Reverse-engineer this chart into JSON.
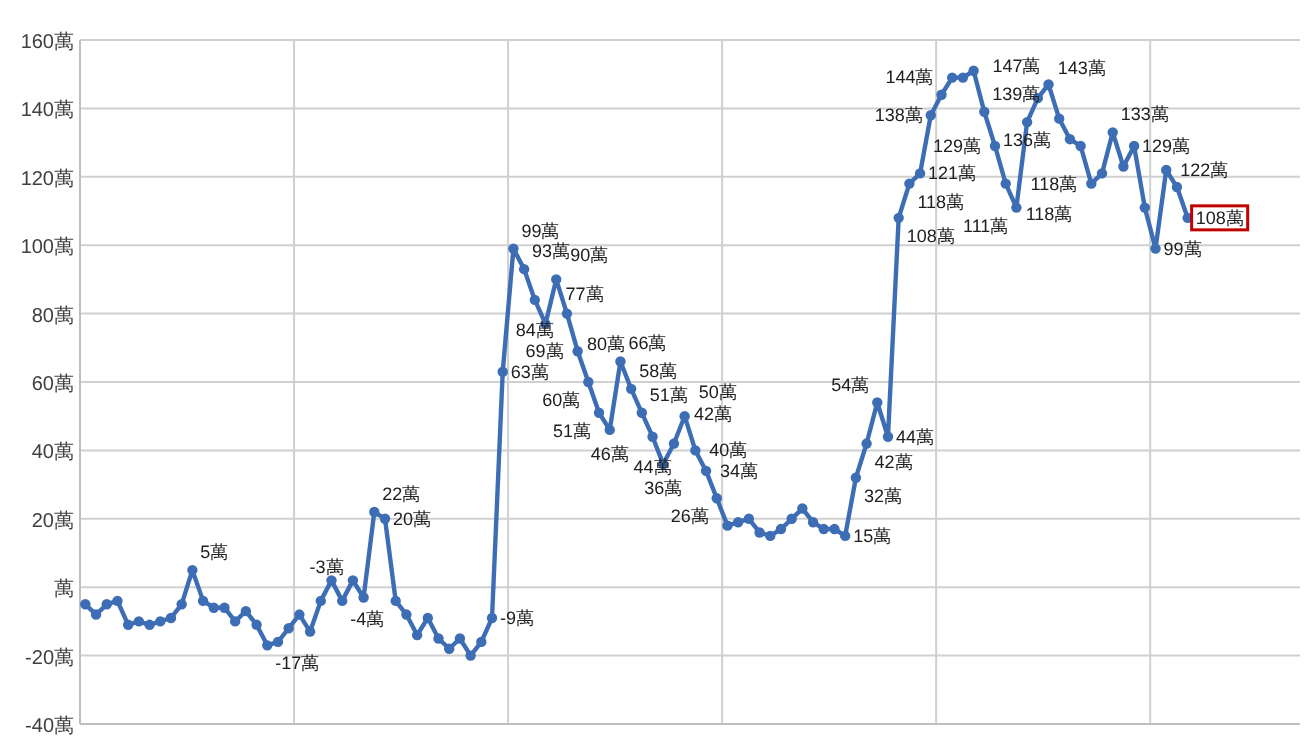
{
  "chart_data": {
    "type": "line",
    "categories": [
      null,
      null,
      null,
      null,
      null,
      null,
      null,
      null,
      null,
      null,
      null,
      null,
      null,
      null,
      null,
      null,
      null,
      null,
      null,
      null,
      null,
      null,
      null,
      null,
      null,
      null,
      null,
      null,
      null,
      null,
      null,
      null,
      null,
      null,
      null,
      null,
      null,
      null,
      null,
      null,
      null,
      null,
      null,
      null,
      null,
      null,
      null,
      null,
      null,
      null,
      null,
      null,
      null,
      null,
      null,
      null,
      null,
      null,
      null,
      null,
      null,
      null,
      null,
      null,
      null,
      null,
      null,
      null,
      null,
      null,
      null,
      null,
      null,
      null,
      null,
      null,
      null,
      null,
      null,
      null,
      null,
      null,
      null,
      null,
      null,
      null,
      null,
      null,
      null,
      null,
      null,
      null,
      null,
      null,
      null,
      null,
      null,
      null,
      null,
      null,
      null,
      null,
      null,
      null,
      null,
      null,
      null,
      null,
      null,
      null,
      null,
      null,
      null,
      null
    ],
    "series": [
      {
        "color": "#3d6eb5",
        "values": [
          -5,
          -8,
          -5,
          -4,
          -11,
          -10,
          -11,
          -10,
          -9,
          -5,
          5,
          -4,
          -6,
          -6,
          -10,
          -7,
          -11,
          -17,
          -16,
          -12,
          -8,
          -13,
          -4,
          2,
          -4,
          2,
          -3,
          22,
          20,
          -4,
          -8,
          -14,
          -9,
          -15,
          -18,
          -15,
          -20,
          -16,
          -9,
          63,
          99,
          93,
          84,
          77,
          90,
          80,
          69,
          60,
          51,
          46,
          66,
          58,
          51,
          44,
          36,
          42,
          50,
          40,
          34,
          26,
          18,
          19,
          20,
          16,
          15,
          17,
          20,
          23,
          19,
          17,
          17,
          15,
          32,
          42,
          54,
          44,
          108,
          118,
          121,
          138,
          144,
          149,
          149,
          151,
          139,
          129,
          118,
          111,
          136,
          143,
          147,
          137,
          131,
          129,
          118,
          121,
          133,
          123,
          129,
          111,
          99,
          122,
          117,
          108,
          null,
          null,
          null,
          null,
          null,
          null,
          null,
          null,
          null,
          null
        ],
        "value_labels": [
          null,
          null,
          null,
          null,
          null,
          null,
          null,
          null,
          null,
          null,
          "5萬",
          null,
          null,
          null,
          null,
          null,
          null,
          "-17萬",
          null,
          null,
          null,
          null,
          null,
          null,
          "-4萬",
          null,
          "-3萬",
          "22萬",
          "20萬",
          null,
          null,
          null,
          null,
          null,
          null,
          null,
          null,
          null,
          "-9萬",
          "63萬",
          "99萬",
          "93萬",
          "84萬",
          "77萬",
          "90萬",
          "80萬",
          "69萬",
          "60萬",
          "51萬",
          "46萬",
          "66萬",
          "58萬",
          "51萬",
          "44萬",
          "36萬",
          "42萬",
          "50萬",
          "40萬",
          "34萬",
          "26萬",
          null,
          null,
          null,
          null,
          null,
          null,
          null,
          null,
          null,
          null,
          null,
          "15萬",
          "32萬",
          "42萬",
          "54萬",
          "44萬",
          "108萬",
          "118萬",
          "121萬",
          "138萬",
          "144萬",
          null,
          null,
          null,
          "139萬",
          "129萬",
          "118萬",
          "111萬",
          "136萬",
          "143萬",
          "147萬",
          null,
          null,
          null,
          "118萬",
          null,
          "133萬",
          null,
          "129萬",
          null,
          "99萬",
          "122萬",
          null,
          "108萬",
          null,
          null,
          null,
          null,
          null,
          null,
          null,
          null,
          null,
          null
        ]
      }
    ],
    "ylim": [
      -40,
      160
    ],
    "yticks": [
      {
        "value": -40,
        "label": "-40萬"
      },
      {
        "value": -20,
        "label": "-20萬"
      },
      {
        "value": 0,
        "label": "萬"
      },
      {
        "value": 20,
        "label": "20萬"
      },
      {
        "value": 40,
        "label": "40萬"
      },
      {
        "value": 60,
        "label": "60萬"
      },
      {
        "value": 80,
        "label": "80萬"
      },
      {
        "value": 100,
        "label": "100萬"
      },
      {
        "value": 120,
        "label": "120萬"
      },
      {
        "value": 140,
        "label": "140萬"
      },
      {
        "value": 160,
        "label": "160萬"
      }
    ],
    "grid": true,
    "marker": "circle",
    "line_style": "solid"
  }
}
